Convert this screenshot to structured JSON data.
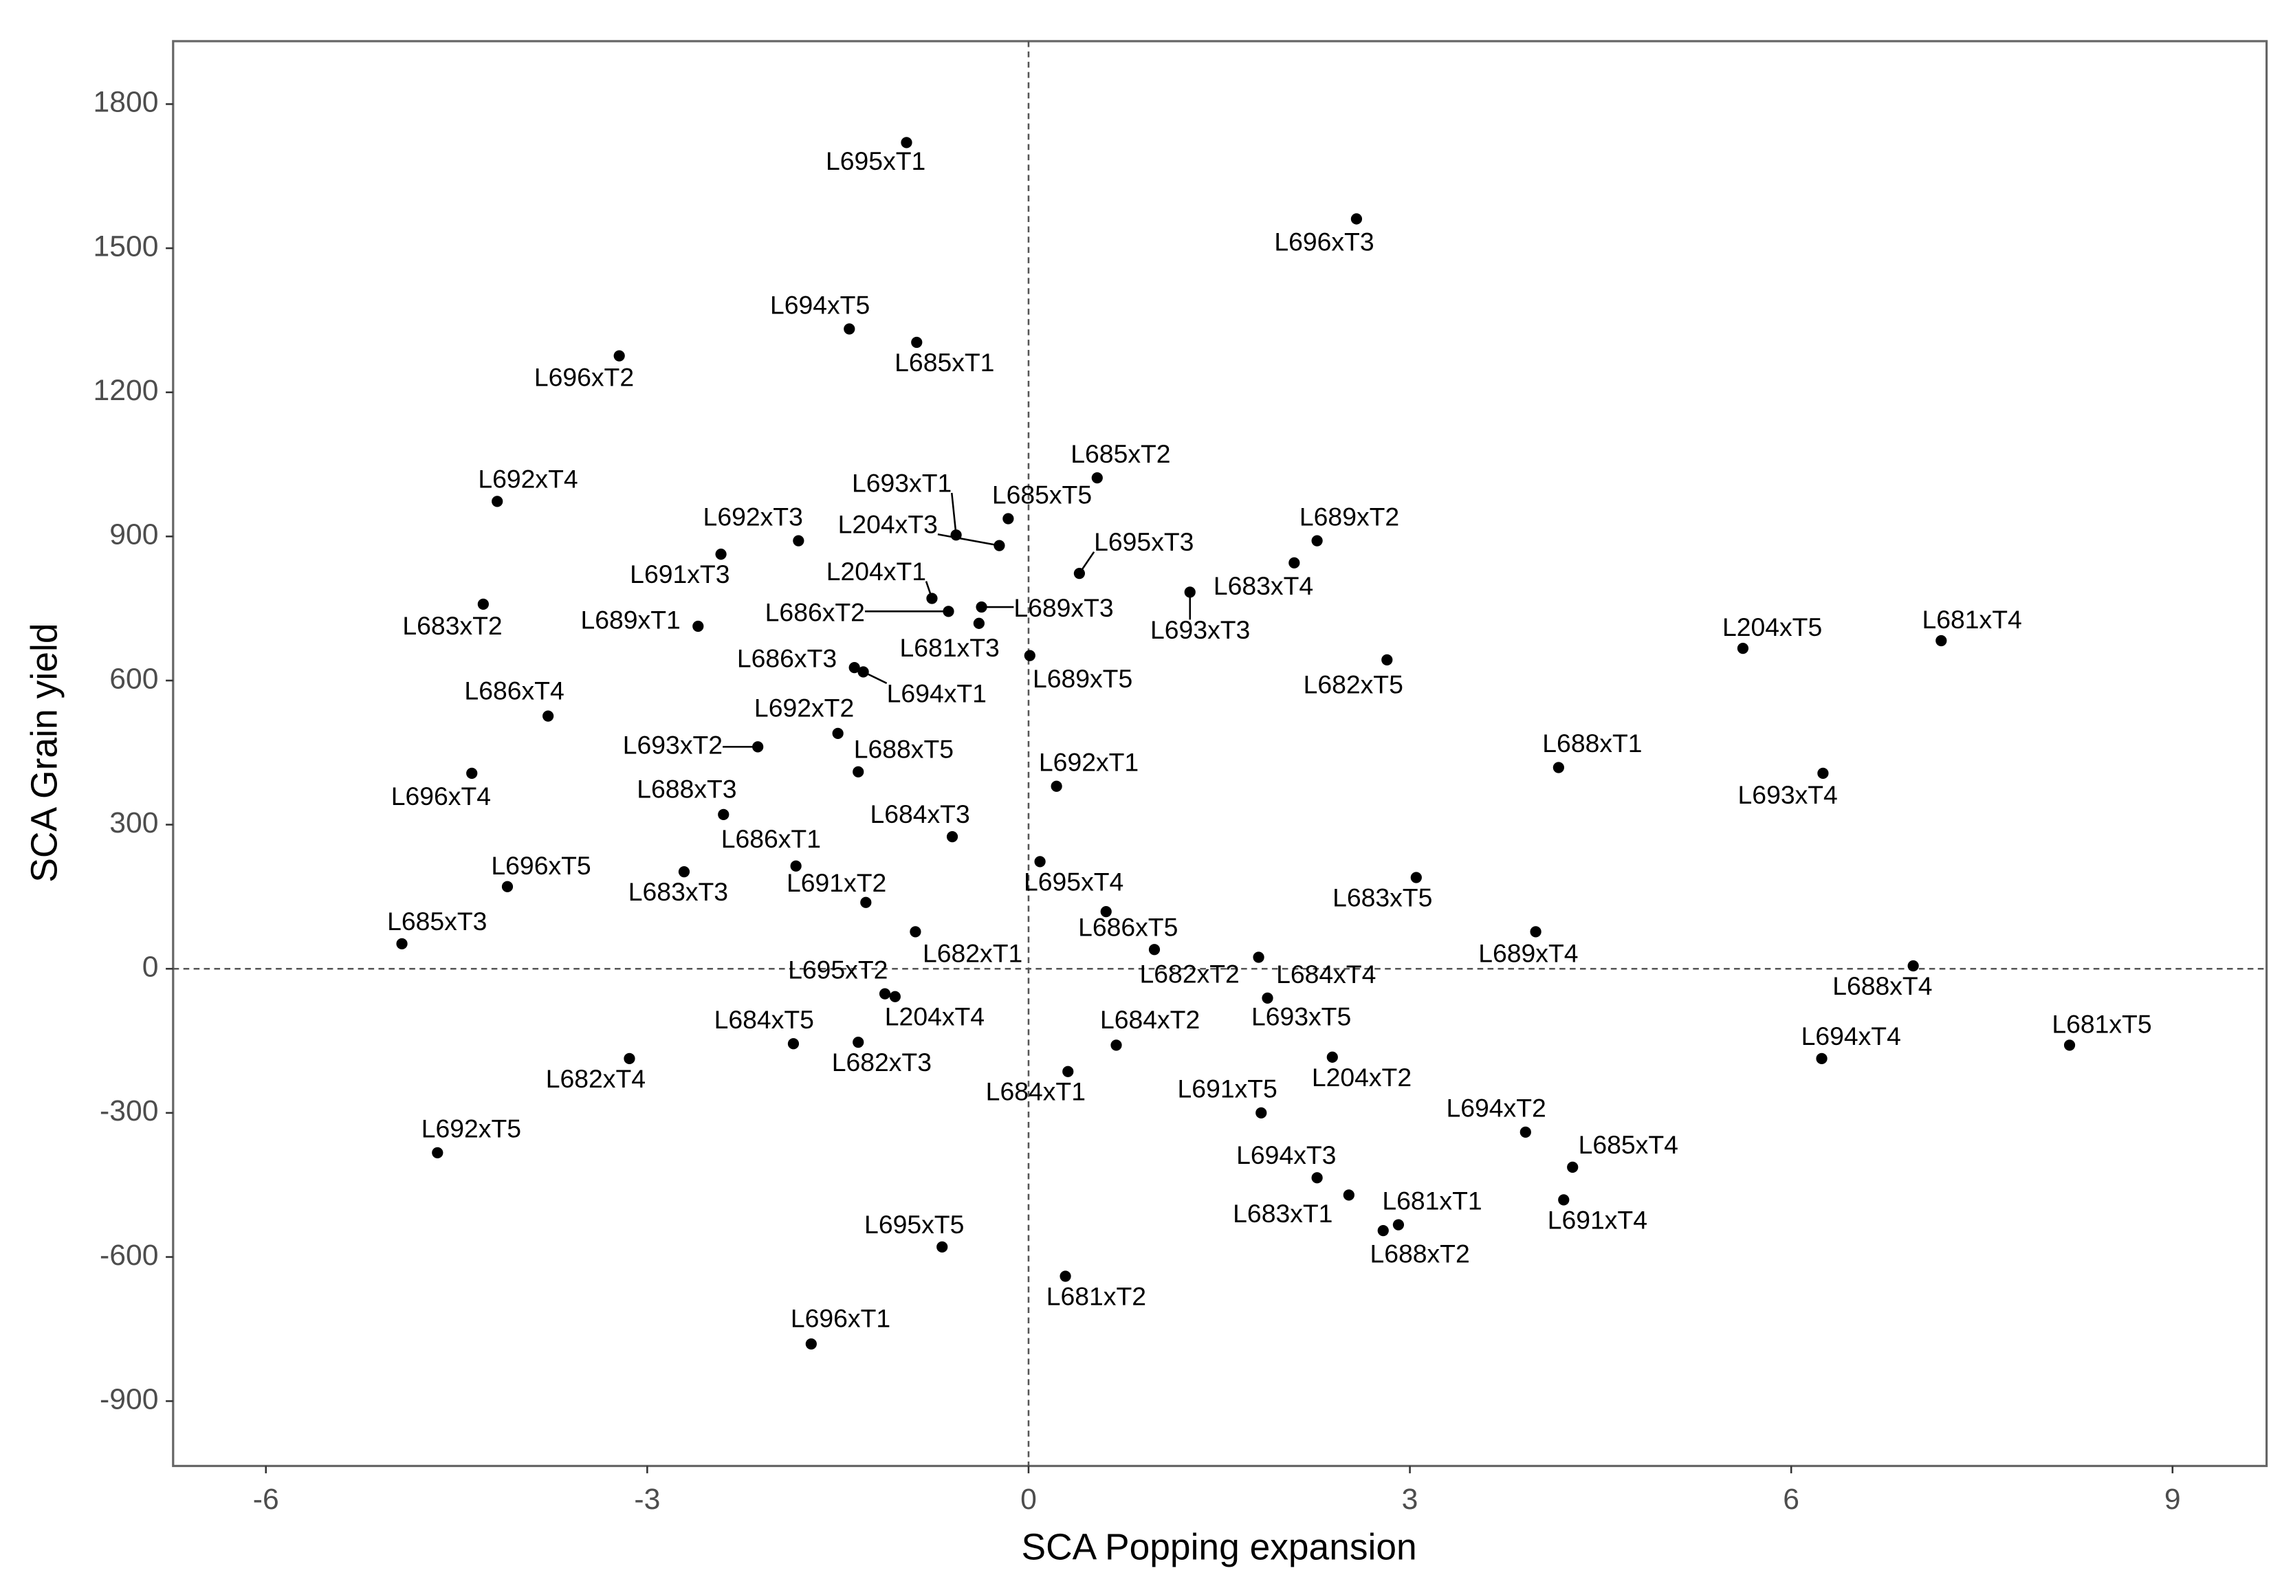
{
  "chart_data": {
    "type": "scatter",
    "xlabel": "SCA Popping expansion",
    "ylabel": "SCA Grain yield",
    "color": "#000000",
    "xlim": [
      -6.73,
      9.74
    ],
    "ylim": [
      -1035,
      1931
    ],
    "xticks": [
      -6,
      -3,
      0,
      3,
      6,
      9
    ],
    "yticks": [
      -900,
      -600,
      -300,
      0,
      300,
      600,
      900,
      1200,
      1500,
      1800
    ],
    "hlines": [
      0
    ],
    "vlines": [
      0
    ],
    "grid": false,
    "labels": [
      "L695xT1",
      "L696xT3",
      "L694xT5",
      "L685xT1",
      "L696xT2",
      "L685xT2",
      "L692xT4",
      "L685xT5",
      "L692xT3",
      "L693xT1",
      "L204xT3",
      "L689xT2",
      "L691xT3",
      "L695xT3",
      "L683xT4",
      "L204xT1",
      "L693xT3",
      "L689xT3",
      "L686xT2",
      "L683xT2",
      "L689xT1",
      "L681xT3",
      "L689xT5",
      "L682xT5",
      "L204xT5",
      "L681xT4",
      "L686xT3",
      "L694xT1",
      "L686xT4",
      "L692xT2",
      "L693xT2",
      "L688xT5",
      "L688xT1",
      "L693xT4",
      "L696xT4",
      "L692xT1",
      "L688xT3",
      "L684xT3",
      "L695xT4",
      "L686xT1",
      "L683xT3",
      "L683xT5",
      "L696xT5",
      "L691xT2",
      "L686xT5",
      "L689xT4",
      "L682xT1",
      "L685xT3",
      "L682xT2",
      "L684xT4",
      "L688xT4",
      "L695xT2",
      "L204xT4",
      "L693xT5",
      "L684xT5",
      "L682xT3",
      "L684xT2",
      "L681xT5",
      "L682xT4",
      "L694xT4",
      "L204xT2",
      "L684xT1",
      "L691xT5",
      "L694xT2",
      "L692xT5",
      "L685xT4",
      "L694xT3",
      "L683xT1",
      "L691xT4",
      "L681xT1",
      "L688xT2",
      "L695xT5",
      "L681xT2",
      "L696xT1"
    ],
    "x": [
      -0.96,
      2.58,
      -1.41,
      -0.88,
      -3.22,
      0.54,
      -4.18,
      -0.16,
      -1.81,
      -0.57,
      -0.23,
      2.27,
      -2.42,
      0.4,
      2.09,
      -0.76,
      1.27,
      -0.37,
      -0.63,
      -4.29,
      -2.6,
      -0.39,
      0.01,
      2.82,
      5.62,
      7.18,
      -1.37,
      -1.3,
      -3.78,
      -1.5,
      -2.13,
      -1.34,
      4.17,
      6.25,
      -4.38,
      0.22,
      -2.4,
      -0.6,
      0.09,
      -1.83,
      -2.71,
      3.05,
      -4.1,
      -1.28,
      0.61,
      3.99,
      -0.89,
      -4.93,
      0.99,
      1.81,
      6.96,
      -1.13,
      -1.05,
      1.88,
      -1.85,
      -1.34,
      0.69,
      8.19,
      -3.14,
      6.24,
      2.39,
      0.31,
      1.83,
      3.91,
      -4.65,
      4.28,
      2.27,
      2.52,
      4.21,
      2.91,
      2.79,
      -0.68,
      0.29,
      -1.71
    ],
    "values": [
      1720,
      1561,
      1332,
      1304,
      1276,
      1022,
      973,
      937,
      891,
      903,
      881,
      891,
      863,
      823,
      845,
      771,
      784,
      753,
      744,
      759,
      713,
      719,
      652,
      643,
      667,
      683,
      627,
      618,
      526,
      490,
      462,
      410,
      419,
      407,
      407,
      380,
      321,
      275,
      223,
      214,
      202,
      190,
      171,
      138,
      119,
      77,
      77,
      52,
      40,
      24,
      6,
      -52,
      -58,
      -61,
      -156,
      -153,
      -159,
      -159,
      -187,
      -187,
      -184,
      -214,
      -300,
      -340,
      -383,
      -413,
      -435,
      -471,
      -481,
      -533,
      -545,
      -579,
      -640,
      -781
    ]
  }
}
